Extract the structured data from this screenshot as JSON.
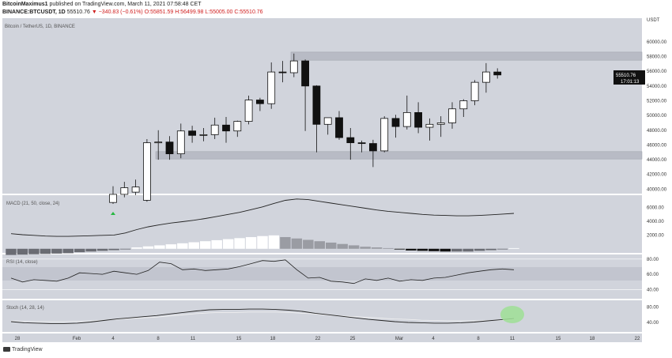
{
  "header": {
    "author": "BitcoinMaximus1",
    "published_text": "published on TradingView.com, March 11, 2021 07:58:48 CET",
    "symbol_line": "BINANCE:BTCUSDT, 1D",
    "price": "55510.76",
    "change": "▼ −340.83 (−0.61%)",
    "ohlc": "O:55851.59 H:56499.98 L:55005.00 C:55510.76"
  },
  "pane_title": "Bitcoin / TetherUS, 1D, BINANCE",
  "currency": "USDT",
  "price_tag": {
    "value": "55510.76",
    "timer": "17:01:13"
  },
  "indicators": {
    "macd": "MACD (21, 50, close, 24)",
    "rsi": "RSI (14, close)",
    "stoch": "Stoch (14, 28, 14)"
  },
  "logo_text": "TradingView",
  "colors": {
    "background": "#ffffff",
    "panel": "#d1d4dc",
    "band": "#c2c5cf",
    "bull": "#ffffff",
    "bear": "#111111",
    "arrow": "#26b840",
    "highlight": "#9fdf95"
  },
  "chart_data": {
    "type": "candlestick",
    "x_ticks": [
      "28",
      "Feb",
      "4",
      "8",
      "11",
      "15",
      "18",
      "22",
      "25",
      "Mar",
      "4",
      "8",
      "11",
      "15",
      "18",
      "22"
    ],
    "price_axis": {
      "ticks": [
        40000,
        42000,
        44000,
        46000,
        48000,
        50000,
        52000,
        54000,
        56000,
        58000,
        60000
      ],
      "range": [
        39400,
        63200
      ]
    },
    "candles": [
      {
        "o": 38200,
        "h": 40400,
        "l": 38000,
        "c": 39300
      },
      {
        "o": 39300,
        "h": 41000,
        "l": 38900,
        "c": 40200
      },
      {
        "o": 39600,
        "h": 41300,
        "l": 39200,
        "c": 40300
      },
      {
        "o": 38500,
        "h": 46800,
        "l": 38300,
        "c": 46300
      },
      {
        "o": 46300,
        "h": 48000,
        "l": 44000,
        "c": 46400
      },
      {
        "o": 46400,
        "h": 47200,
        "l": 44000,
        "c": 44800
      },
      {
        "o": 44800,
        "h": 48900,
        "l": 44200,
        "c": 47900
      },
      {
        "o": 47900,
        "h": 48600,
        "l": 46300,
        "c": 47300
      },
      {
        "o": 47300,
        "h": 48300,
        "l": 46500,
        "c": 47400
      },
      {
        "o": 47400,
        "h": 49700,
        "l": 46800,
        "c": 48700
      },
      {
        "o": 48700,
        "h": 49800,
        "l": 46300,
        "c": 47900
      },
      {
        "o": 47900,
        "h": 49300,
        "l": 47100,
        "c": 49200
      },
      {
        "o": 49200,
        "h": 52700,
        "l": 48800,
        "c": 52100
      },
      {
        "o": 52100,
        "h": 52400,
        "l": 50600,
        "c": 51600
      },
      {
        "o": 51600,
        "h": 57200,
        "l": 50900,
        "c": 55900
      },
      {
        "o": 55900,
        "h": 57400,
        "l": 54500,
        "c": 55800
      },
      {
        "o": 55800,
        "h": 58400,
        "l": 55200,
        "c": 57400
      },
      {
        "o": 57400,
        "h": 57600,
        "l": 47900,
        "c": 54000
      },
      {
        "o": 54000,
        "h": 54100,
        "l": 45000,
        "c": 48800
      },
      {
        "o": 48800,
        "h": 49700,
        "l": 47400,
        "c": 49700
      },
      {
        "o": 49700,
        "h": 50600,
        "l": 46700,
        "c": 47000
      },
      {
        "o": 47000,
        "h": 48300,
        "l": 44000,
        "c": 46300
      },
      {
        "o": 46300,
        "h": 46600,
        "l": 45000,
        "c": 46200
      },
      {
        "o": 46200,
        "h": 46700,
        "l": 43000,
        "c": 45200
      },
      {
        "o": 45200,
        "h": 49900,
        "l": 45000,
        "c": 49600
      },
      {
        "o": 49600,
        "h": 50100,
        "l": 47000,
        "c": 48500
      },
      {
        "o": 48500,
        "h": 52700,
        "l": 48100,
        "c": 50400
      },
      {
        "o": 50400,
        "h": 51800,
        "l": 47600,
        "c": 48400
      },
      {
        "o": 48400,
        "h": 49600,
        "l": 46600,
        "c": 48800
      },
      {
        "o": 48800,
        "h": 49900,
        "l": 47100,
        "c": 49000
      },
      {
        "o": 49000,
        "h": 51800,
        "l": 48200,
        "c": 50900
      },
      {
        "o": 50900,
        "h": 52200,
        "l": 49800,
        "c": 52000
      },
      {
        "o": 52000,
        "h": 54800,
        "l": 51400,
        "c": 54500
      },
      {
        "o": 54500,
        "h": 57100,
        "l": 53100,
        "c": 55900
      },
      {
        "o": 55900,
        "h": 56400,
        "l": 55000,
        "c": 55500
      }
    ],
    "macd_axis": {
      "ticks": [
        2000,
        4000,
        6000
      ],
      "range": [
        -600,
        7800
      ]
    },
    "macd_line": [
      2200,
      2050,
      1950,
      1850,
      1800,
      1800,
      1850,
      1900,
      1950,
      2000,
      2300,
      2800,
      3200,
      3500,
      3750,
      3950,
      4150,
      4400,
      4700,
      5000,
      5300,
      5700,
      6100,
      6600,
      7050,
      7250,
      7150,
      6900,
      6650,
      6400,
      6150,
      5900,
      5650,
      5450,
      5300,
      5150,
      5000,
      4900,
      4850,
      4800,
      4800,
      4850,
      4950,
      5050,
      5150
    ],
    "macd_histogram": [
      -900,
      -850,
      -800,
      -750,
      -700,
      -650,
      -500,
      -400,
      -300,
      -200,
      -50,
      200,
      350,
      500,
      650,
      800,
      950,
      1100,
      1250,
      1400,
      1550,
      1700,
      1850,
      1950,
      1700,
      1500,
      1300,
      1100,
      900,
      700,
      500,
      300,
      200,
      100,
      -100,
      -250,
      -300,
      -350,
      -400,
      -400,
      -400,
      -300,
      -200,
      -50,
      100
    ],
    "rsi_axis": {
      "ticks": [
        40,
        60,
        80
      ],
      "range": [
        28,
        86
      ]
    },
    "rsi_line": [
      55,
      50,
      53,
      52,
      51,
      55,
      62,
      61,
      60,
      64,
      62,
      60,
      65,
      76,
      74,
      66,
      67,
      65,
      66,
      67,
      70,
      74,
      78,
      77,
      79,
      66,
      55,
      56,
      51,
      50,
      48,
      54,
      52,
      55,
      51,
      53,
      52,
      55,
      56,
      59,
      62,
      64,
      66,
      67,
      66
    ],
    "stoch_axis": {
      "ticks": [
        40,
        80
      ],
      "range": [
        15,
        98
      ]
    },
    "stoch_k": [
      42,
      39,
      38,
      37,
      37,
      38,
      41,
      45,
      49,
      52,
      55,
      58,
      62,
      66,
      70,
      73,
      74,
      74,
      75,
      75,
      74,
      72,
      69,
      64,
      60,
      56,
      52,
      48,
      45,
      42,
      40,
      39,
      38,
      38,
      39,
      41,
      44,
      47,
      50
    ],
    "stoch_d": [
      44,
      43,
      42,
      42,
      42,
      43,
      44,
      46,
      48,
      50,
      52,
      54,
      57,
      60,
      63,
      65,
      66,
      66,
      67,
      67,
      67,
      66,
      64,
      62,
      59,
      57,
      55,
      53,
      51,
      49,
      48,
      46,
      45,
      44,
      44,
      44,
      45,
      46,
      47
    ]
  }
}
